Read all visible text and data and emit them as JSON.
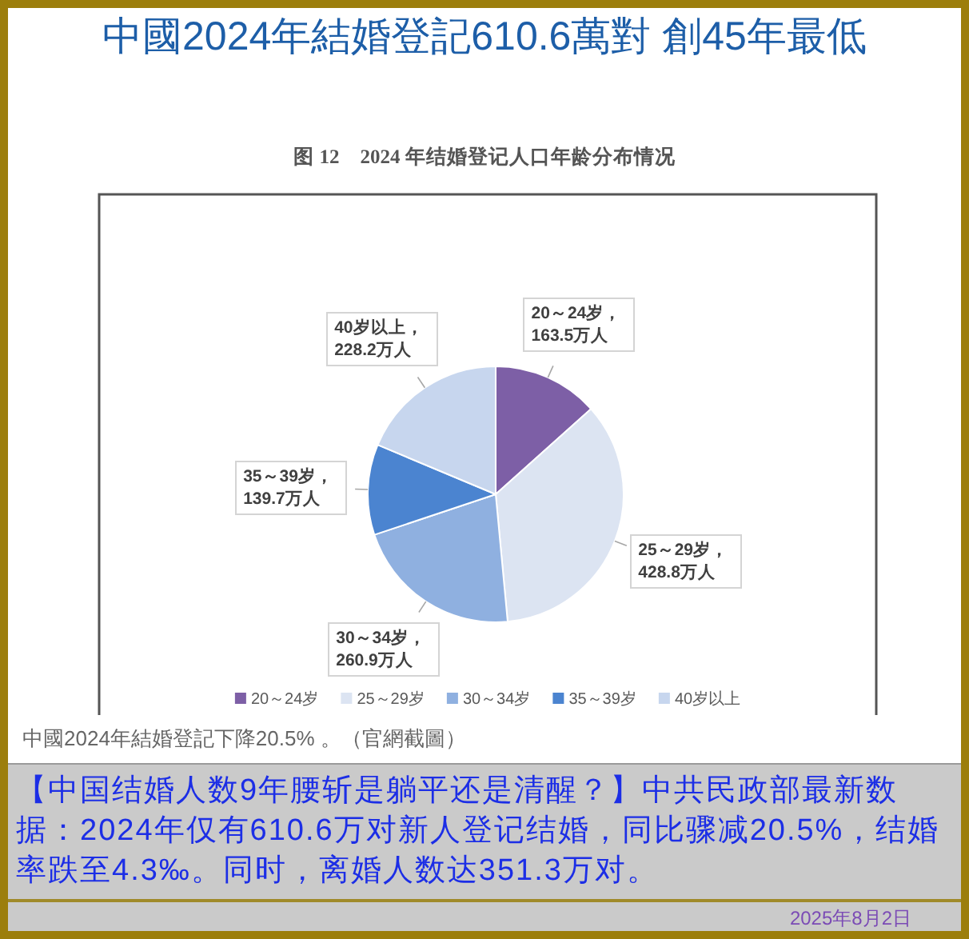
{
  "chart_data": {
    "type": "pie",
    "title": "中國2024年結婚登記610.6萬對 創45年最低",
    "subtitle": "图 12　2024 年结婚登记人口年龄分布情况",
    "categories": [
      "20～24岁",
      "25～29岁",
      "30～34岁",
      "35～39岁",
      "40岁以上"
    ],
    "values": [
      163.5,
      428.8,
      260.9,
      139.7,
      228.2
    ],
    "colors": [
      "#7d5fa6",
      "#dce4f2",
      "#8fb0e0",
      "#4b84d0",
      "#c7d6ee"
    ],
    "value_labels": [
      "20～24岁，163.5万人",
      "25～29岁，428.8万人",
      "30～34岁，260.9万人",
      "35～39岁，139.7万人",
      "40岁以上，228.2万人"
    ],
    "legend": "bottom",
    "annotations": [
      "中國2024年結婚登記下降20.5% 。（官網截圖）",
      "【中国结婚人数9年腰斩是躺平还是清醒？】中共民政部最新数据：2024年仅有610.6万对新人登记结婚，同比骤减20.5%，结婚率跌至4.3‰。同时，离婚人数达351.3万对。",
      "2025年8月2日"
    ]
  }
}
